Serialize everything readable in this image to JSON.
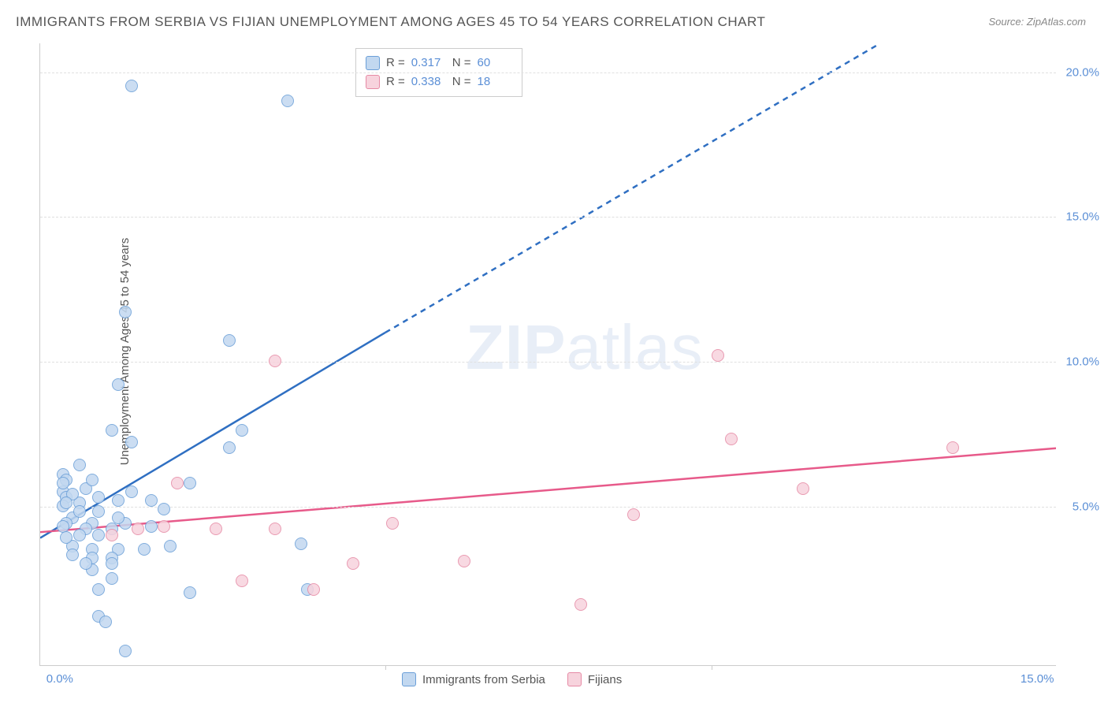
{
  "title": "IMMIGRANTS FROM SERBIA VS FIJIAN UNEMPLOYMENT AMONG AGES 45 TO 54 YEARS CORRELATION CHART",
  "source": "Source: ZipAtlas.com",
  "y_axis_label": "Unemployment Among Ages 45 to 54 years",
  "watermark_a": "ZIP",
  "watermark_b": "atlas",
  "chart": {
    "type": "scatter",
    "xlim": [
      -0.3,
      15.3
    ],
    "ylim": [
      -0.5,
      21.0
    ],
    "x_ticks": [
      0.0,
      5.0,
      10.0,
      15.0
    ],
    "x_tick_labels": [
      "0.0%",
      "",
      "",
      "15.0%"
    ],
    "x_tick_marks": [
      5.0,
      10.0
    ],
    "y_ticks": [
      5.0,
      10.0,
      15.0,
      20.0
    ],
    "y_tick_labels": [
      "5.0%",
      "10.0%",
      "15.0%",
      "20.0%"
    ],
    "background_color": "#ffffff",
    "grid_color": "#e0e0e0",
    "axis_color": "#cccccc",
    "tick_label_color": "#5b8fd6",
    "label_fontsize": 15
  },
  "series": [
    {
      "name": "Immigrants from Serbia",
      "fill": "#c2d8f0",
      "stroke": "#6b9fd8",
      "line_color": "#2f6fc2",
      "trend_solid": [
        [
          -0.3,
          3.9
        ],
        [
          5.0,
          11.0
        ]
      ],
      "trend_dashed": [
        [
          5.0,
          11.0
        ],
        [
          12.6,
          21.0
        ]
      ],
      "points": [
        [
          1.1,
          19.5
        ],
        [
          3.5,
          19.0
        ],
        [
          1.0,
          11.7
        ],
        [
          2.6,
          10.7
        ],
        [
          0.9,
          9.2
        ],
        [
          0.8,
          7.6
        ],
        [
          1.1,
          7.2
        ],
        [
          2.8,
          7.6
        ],
        [
          2.6,
          7.0
        ],
        [
          2.0,
          5.8
        ],
        [
          0.3,
          6.4
        ],
        [
          0.05,
          6.1
        ],
        [
          0.1,
          5.9
        ],
        [
          0.05,
          5.5
        ],
        [
          0.1,
          5.3
        ],
        [
          0.05,
          5.0
        ],
        [
          0.3,
          5.1
        ],
        [
          0.6,
          5.3
        ],
        [
          0.6,
          4.8
        ],
        [
          0.5,
          4.4
        ],
        [
          0.9,
          5.2
        ],
        [
          1.1,
          5.5
        ],
        [
          1.4,
          5.2
        ],
        [
          1.6,
          4.9
        ],
        [
          0.2,
          4.6
        ],
        [
          0.4,
          4.2
        ],
        [
          0.1,
          4.4
        ],
        [
          0.3,
          4.0
        ],
        [
          0.6,
          4.0
        ],
        [
          0.8,
          4.2
        ],
        [
          1.0,
          4.4
        ],
        [
          1.4,
          4.3
        ],
        [
          0.2,
          3.6
        ],
        [
          0.5,
          3.5
        ],
        [
          0.9,
          3.5
        ],
        [
          1.3,
          3.5
        ],
        [
          1.7,
          3.6
        ],
        [
          0.5,
          3.2
        ],
        [
          0.8,
          3.2
        ],
        [
          0.8,
          3.0
        ],
        [
          0.5,
          2.8
        ],
        [
          0.8,
          2.5
        ],
        [
          0.6,
          1.2
        ],
        [
          0.7,
          1.0
        ],
        [
          1.0,
          0.0
        ],
        [
          2.0,
          2.0
        ],
        [
          3.8,
          2.1
        ],
        [
          3.7,
          3.7
        ],
        [
          0.05,
          5.8
        ],
        [
          0.2,
          5.4
        ],
        [
          0.4,
          5.6
        ],
        [
          0.1,
          5.1
        ],
        [
          0.5,
          5.9
        ],
        [
          0.3,
          4.8
        ],
        [
          0.9,
          4.6
        ],
        [
          0.05,
          4.3
        ],
        [
          0.1,
          3.9
        ],
        [
          0.2,
          3.3
        ],
        [
          0.4,
          3.0
        ],
        [
          0.6,
          2.1
        ]
      ]
    },
    {
      "name": "Fijians",
      "fill": "#f7d3dd",
      "stroke": "#e68aa5",
      "line_color": "#e75a8a",
      "trend_solid": [
        [
          -0.3,
          4.1
        ],
        [
          15.3,
          7.0
        ]
      ],
      "trend_dashed": null,
      "points": [
        [
          3.3,
          10.0
        ],
        [
          10.1,
          10.2
        ],
        [
          10.3,
          7.3
        ],
        [
          11.4,
          5.6
        ],
        [
          13.7,
          7.0
        ],
        [
          8.8,
          4.7
        ],
        [
          8.0,
          1.6
        ],
        [
          6.2,
          3.1
        ],
        [
          4.5,
          3.0
        ],
        [
          5.1,
          4.4
        ],
        [
          3.9,
          2.1
        ],
        [
          3.3,
          4.2
        ],
        [
          2.8,
          2.4
        ],
        [
          2.4,
          4.2
        ],
        [
          1.6,
          4.3
        ],
        [
          1.8,
          5.8
        ],
        [
          0.8,
          4.0
        ],
        [
          1.2,
          4.2
        ]
      ]
    }
  ],
  "stats_legend": {
    "rows": [
      {
        "swatch_fill": "#c2d8f0",
        "swatch_stroke": "#6b9fd8",
        "r_label": "R =",
        "r": "0.317",
        "n_label": "N =",
        "n": "60"
      },
      {
        "swatch_fill": "#f7d3dd",
        "swatch_stroke": "#e68aa5",
        "r_label": "R =",
        "r": "0.338",
        "n_label": "N =",
        "n": "18"
      }
    ]
  },
  "bottom_legend": [
    {
      "swatch_fill": "#c2d8f0",
      "swatch_stroke": "#6b9fd8",
      "label": "Immigrants from Serbia"
    },
    {
      "swatch_fill": "#f7d3dd",
      "swatch_stroke": "#e68aa5",
      "label": "Fijians"
    }
  ]
}
